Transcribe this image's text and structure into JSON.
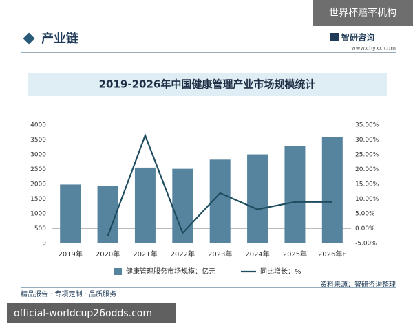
{
  "page": {
    "badge": "世界杯赔率机构",
    "section": "产业链",
    "brand": "智研咨询",
    "url": "www.chyxx.com",
    "footer": "精品报告 · 专项定制 · 品质服务",
    "source": "资料来源：智研咨询整理",
    "watermark": "official-worldcup26odds.com"
  },
  "chart_data": {
    "type": "bar",
    "title": "2019-2026年中国健康管理产业市场规模统计",
    "categories": [
      "2019年",
      "2020年",
      "2021年",
      "2022年",
      "2023年",
      "2024年",
      "2025年",
      "2026年E"
    ],
    "series": [
      {
        "name": "健康管理服务市场规模：亿元",
        "type": "bar",
        "color": "#56849f",
        "values": [
          1990,
          1940,
          2560,
          2520,
          2830,
          3010,
          3290,
          3590
        ]
      },
      {
        "name": "同比增长：%",
        "type": "line",
        "axis": "y2",
        "color": "#1d4d5e",
        "values": [
          null,
          -2.5,
          31.5,
          -1.5,
          12,
          6.5,
          9,
          9
        ]
      }
    ],
    "ylim": [
      0,
      4000
    ],
    "yticks": [
      0,
      500,
      1000,
      1500,
      2000,
      2500,
      3000,
      3500,
      4000
    ],
    "y2lim": [
      -5,
      35
    ],
    "y2ticks": [
      {
        "value": -5,
        "label": "-5.00%"
      },
      {
        "value": 0,
        "label": "0.00%"
      },
      {
        "value": 5,
        "label": "5.00%"
      },
      {
        "value": 10,
        "label": "10.00%"
      },
      {
        "value": 15,
        "label": "15.00%"
      },
      {
        "value": 20,
        "label": "20.00%"
      },
      {
        "value": 25,
        "label": "25.00%"
      },
      {
        "value": 30,
        "label": "30.00%"
      },
      {
        "value": 35,
        "label": "35.00%"
      }
    ],
    "grid": false,
    "legend": "bottom"
  }
}
